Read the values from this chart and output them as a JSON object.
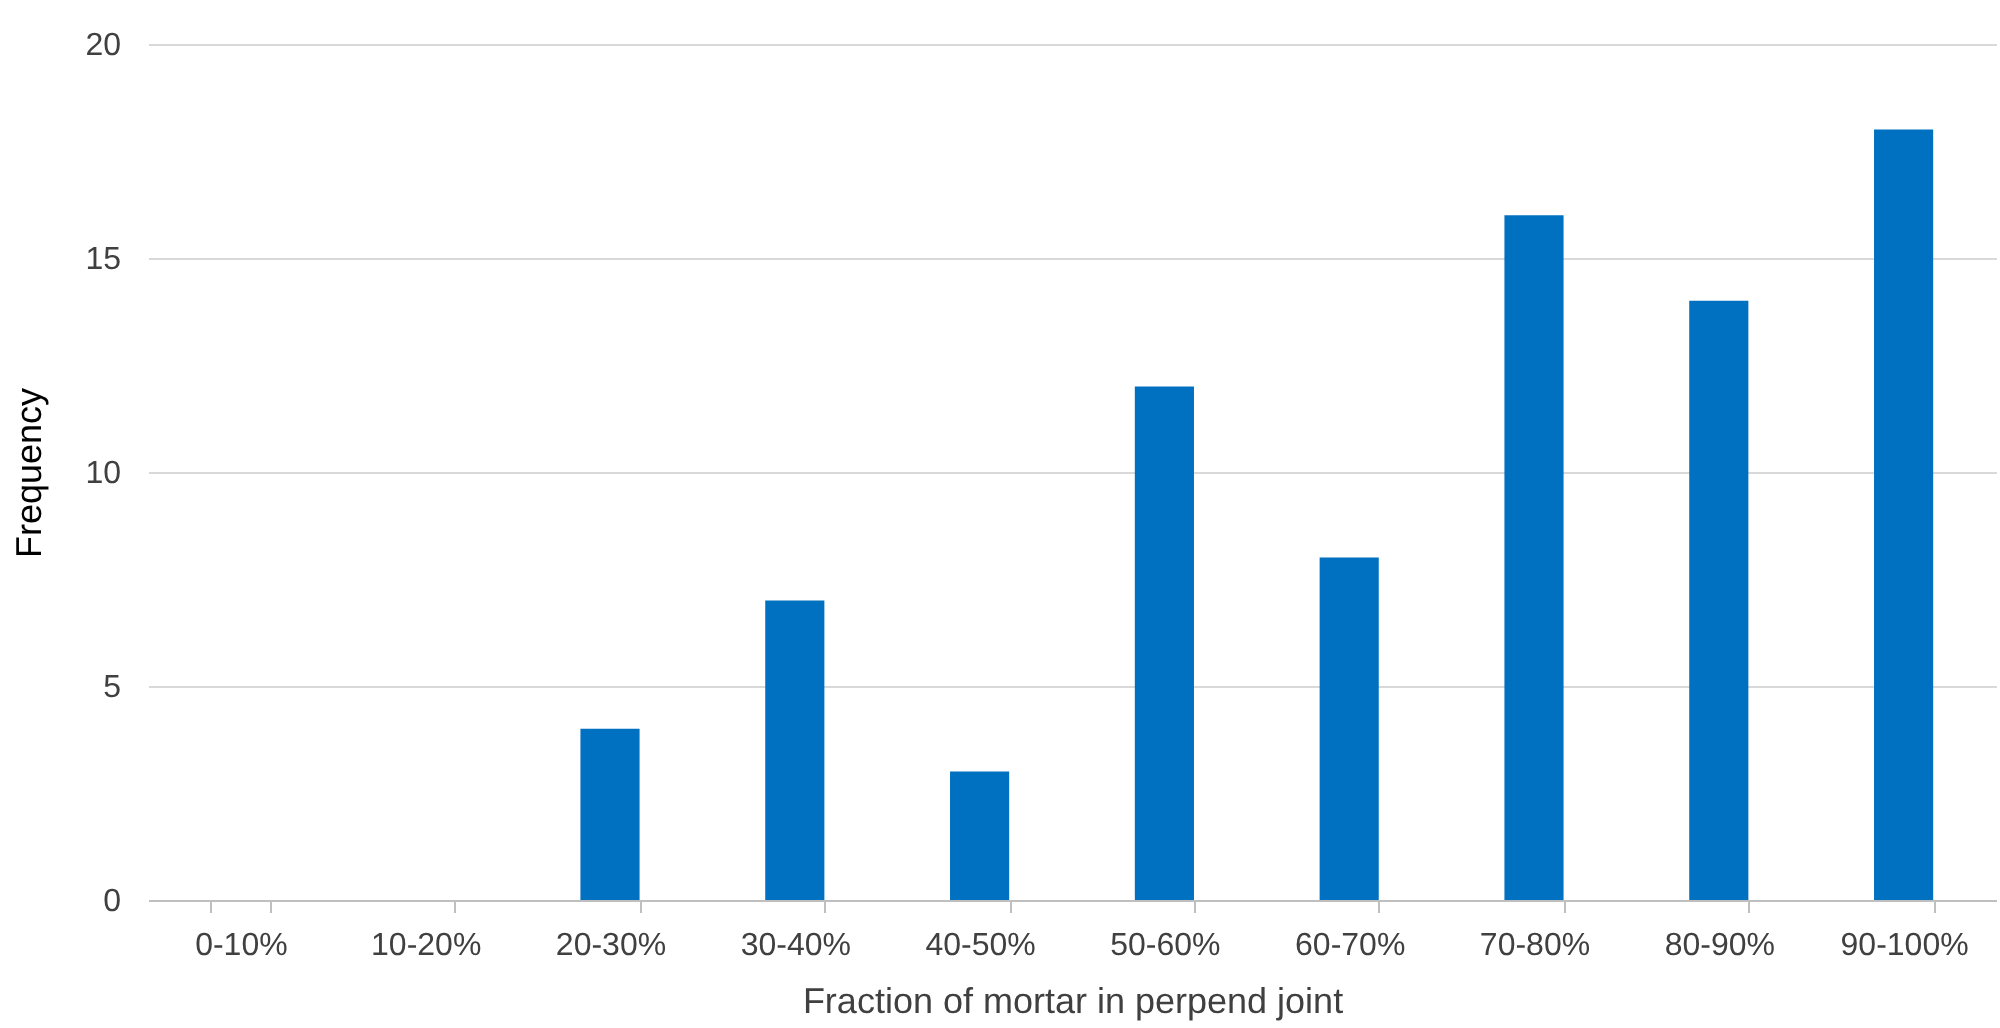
{
  "chart_data": {
    "type": "bar",
    "xlabel": "Fraction of mortar in perpend joint",
    "ylabel": "Frequency",
    "categories": [
      "0-10%",
      "10-20%",
      "20-30%",
      "30-40%",
      "40-50%",
      "50-60%",
      "60-70%",
      "70-80%",
      "80-90%",
      "90-100%"
    ],
    "values": [
      0,
      0,
      4,
      7,
      3,
      12,
      8,
      16,
      14,
      18
    ],
    "color": "#0070c0",
    "ylim": [
      0,
      20
    ],
    "yticks": [
      0,
      5,
      10,
      15,
      20
    ],
    "grid": "y"
  }
}
